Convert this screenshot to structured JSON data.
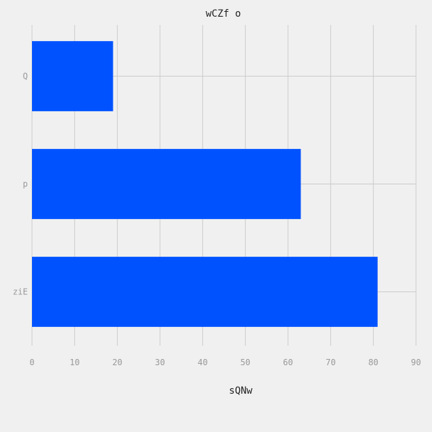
{
  "chart_data": {
    "type": "bar",
    "orientation": "horizontal",
    "title": "wCZf o",
    "xlabel": "sQNw",
    "ylabel": "",
    "categories": [
      "Q",
      "p",
      "ziE"
    ],
    "values": [
      19,
      63,
      81
    ],
    "xlim": [
      0,
      90
    ],
    "xticks": [
      "0",
      "10",
      "20",
      "30",
      "40",
      "50",
      "60",
      "70",
      "80",
      "90"
    ],
    "grid": true,
    "bar_color": "#0052ff",
    "background_color": "#f0f0f0",
    "grid_color": "#cbcbcb"
  }
}
